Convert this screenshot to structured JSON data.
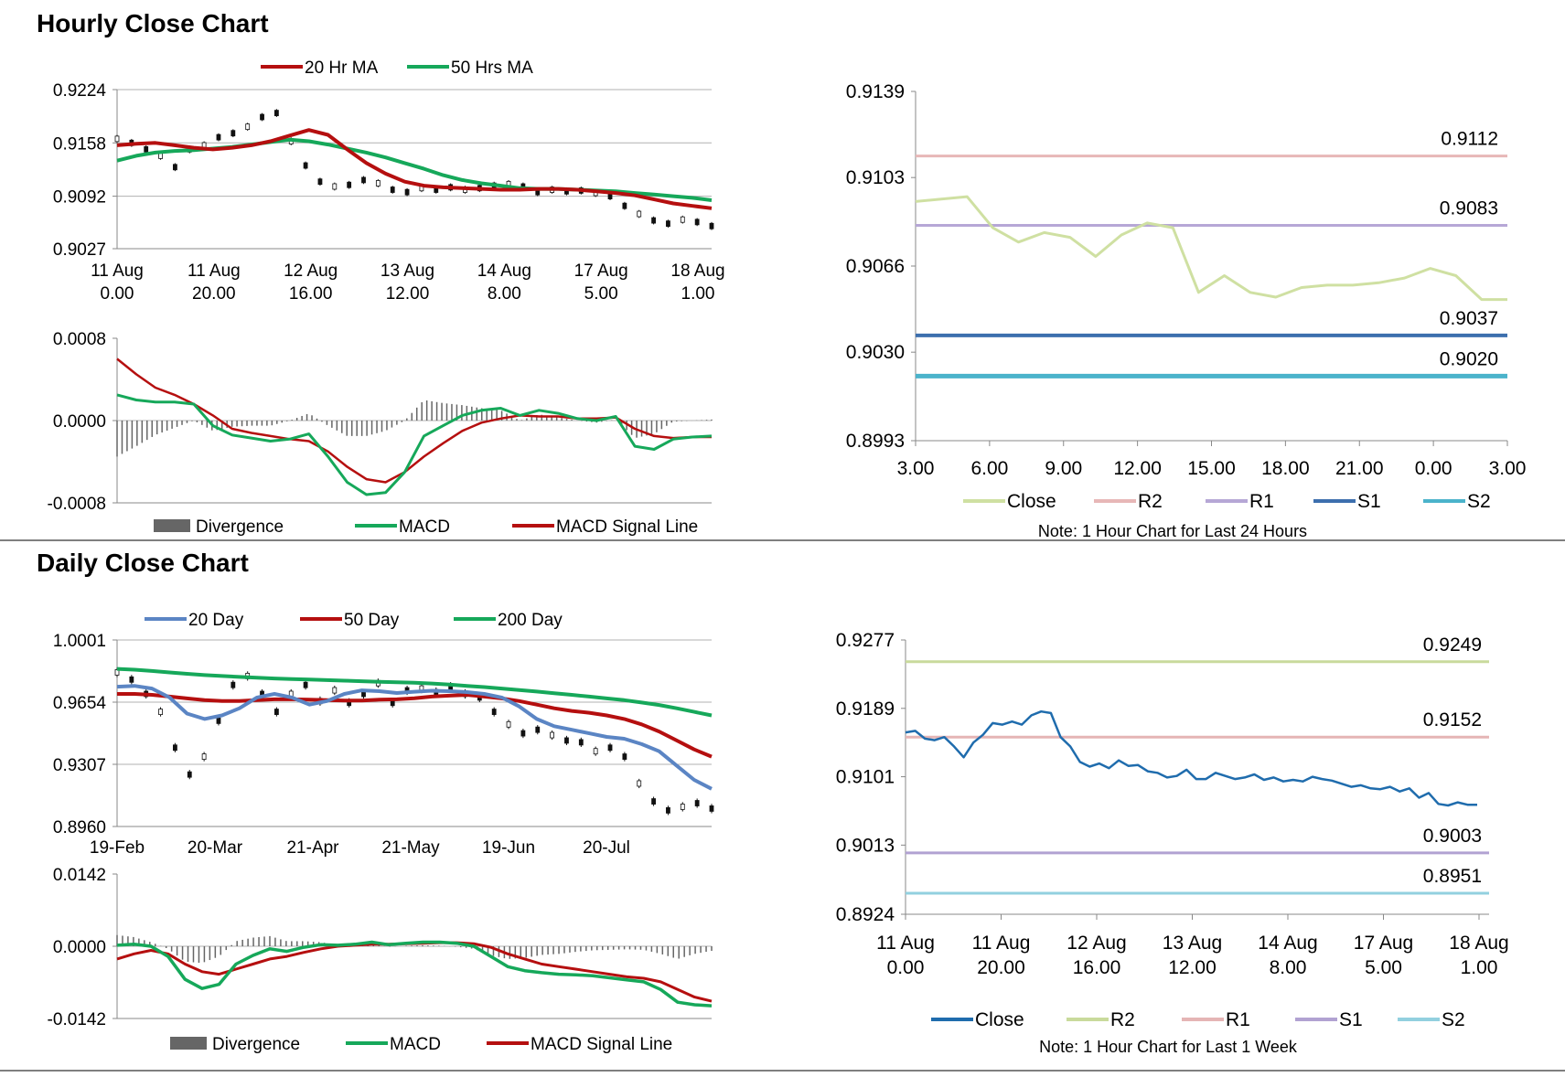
{
  "sections": {
    "hourly_title": "Hourly Close Chart",
    "daily_title": "Daily Close Chart"
  },
  "colors": {
    "red": "#b50f0f",
    "green": "#16a85a",
    "blue": "#5b85c4",
    "close_light": "#cfe0a2",
    "r2_pink": "#e7b7b7",
    "r1_purple": "#b6a7d6",
    "s1_blue": "#3d6fae",
    "s2_teal": "#4bb3cb",
    "daily_blue": "#1f6cad",
    "daily_r2": "#c9da9c",
    "daily_r1": "#e5b5b5",
    "daily_s1": "#b1a2d2",
    "daily_s2": "#92d0df",
    "bar_gray": "#666666"
  },
  "chart_data": [
    {
      "id": "hourly_price",
      "type": "candlestick",
      "legend": [
        "20 Hr MA",
        "50 Hrs MA"
      ],
      "y_ticks": [
        "0.9224",
        "0.9158",
        "0.9092",
        "0.9027"
      ],
      "ylim": [
        0.9027,
        0.9224
      ],
      "x_ticks": [
        [
          "11 Aug",
          "0.00"
        ],
        [
          "11 Aug",
          "20.00"
        ],
        [
          "12 Aug",
          "16.00"
        ],
        [
          "13 Aug",
          "12.00"
        ],
        [
          "14 Aug",
          "8.00"
        ],
        [
          "17 Aug",
          "5.00"
        ],
        [
          "18 Aug",
          "1.00"
        ]
      ],
      "series": [
        {
          "name": "20 Hr MA",
          "values": [
            0.9155,
            0.9157,
            0.9158,
            0.9155,
            0.9152,
            0.915,
            0.9152,
            0.9155,
            0.916,
            0.9167,
            0.9174,
            0.9168,
            0.915,
            0.9133,
            0.912,
            0.911,
            0.9105,
            0.9103,
            0.9102,
            0.9101,
            0.91,
            0.91,
            0.9101,
            0.9101,
            0.91,
            0.9098,
            0.9096,
            0.9093,
            0.9088,
            0.9083,
            0.908,
            0.9077
          ]
        },
        {
          "name": "50 Hrs MA",
          "values": [
            0.9136,
            0.9142,
            0.9146,
            0.9148,
            0.9149,
            0.9151,
            0.9153,
            0.9156,
            0.9159,
            0.9162,
            0.916,
            0.9156,
            0.9151,
            0.9146,
            0.914,
            0.9133,
            0.9126,
            0.9118,
            0.9112,
            0.9108,
            0.9105,
            0.9102,
            0.9101,
            0.9101,
            0.91,
            0.9099,
            0.9098,
            0.9096,
            0.9094,
            0.9092,
            0.909,
            0.9087
          ]
        }
      ],
      "candles": [
        0.9163,
        0.9158,
        0.915,
        0.9142,
        0.9128,
        0.915,
        0.9155,
        0.9165,
        0.917,
        0.9178,
        0.919,
        0.9195,
        0.916,
        0.913,
        0.911,
        0.9104,
        0.9106,
        0.9112,
        0.9108,
        0.91,
        0.9097,
        0.9102,
        0.91,
        0.9103,
        0.91,
        0.9102,
        0.9105,
        0.9107,
        0.9104,
        0.9097,
        0.91,
        0.9098,
        0.9099,
        0.9096,
        0.9092,
        0.908,
        0.907,
        0.9062,
        0.9058,
        0.9063,
        0.906,
        0.9055
      ]
    },
    {
      "id": "hourly_macd",
      "type": "line",
      "legend": [
        "Divergence",
        "MACD",
        "MACD Signal Line"
      ],
      "y_ticks": [
        "0.0008",
        "0.0000",
        "-0.0008"
      ],
      "ylim": [
        -0.0008,
        0.0008
      ],
      "series": [
        {
          "name": "MACD",
          "values": [
            0.00025,
            0.0002,
            0.00018,
            0.00018,
            0.00016,
            -5e-05,
            -0.00014,
            -0.00017,
            -0.0002,
            -0.00018,
            -0.00013,
            -0.00035,
            -0.0006,
            -0.00072,
            -0.0007,
            -0.0005,
            -0.00015,
            -5e-05,
            5e-05,
            0.0001,
            0.00012,
            5e-05,
            0.0001,
            7e-05,
            2e-05,
            0.0,
            4e-05,
            -0.00025,
            -0.00028,
            -0.00018,
            -0.00016,
            -0.00015
          ]
        },
        {
          "name": "MACD Signal Line",
          "values": [
            0.0006,
            0.00045,
            0.00032,
            0.00025,
            0.00016,
            5e-05,
            -8e-05,
            -0.00012,
            -0.00015,
            -0.00018,
            -0.0002,
            -0.0003,
            -0.00045,
            -0.00057,
            -0.0006,
            -0.0005,
            -0.00035,
            -0.00022,
            -0.0001,
            -2e-05,
            2e-05,
            5e-05,
            4e-05,
            4e-05,
            2e-05,
            2e-05,
            3e-05,
            -8e-05,
            -0.00015,
            -0.00017,
            -0.00016,
            -0.00016
          ]
        },
        {
          "name": "Divergence",
          "values": [
            -0.00035,
            -0.00025,
            -0.00014,
            -7e-05,
            0.0,
            -0.0001,
            -6e-05,
            -5e-05,
            -5e-05,
            0.0,
            7e-05,
            -5e-05,
            -0.00015,
            -0.00015,
            -0.0001,
            0.0,
            0.0002,
            0.00017,
            0.00015,
            0.00012,
            0.0001,
            0.0,
            6e-05,
            3e-05,
            0.0,
            -2e-05,
            1e-05,
            -0.00017,
            -0.00013,
            -1e-05,
            0.0,
            1e-05
          ]
        }
      ]
    },
    {
      "id": "hourly_close",
      "type": "line",
      "legend": [
        "Close",
        "R2",
        "R1",
        "S1",
        "S2"
      ],
      "y_ticks": [
        "0.9139",
        "0.9103",
        "0.9066",
        "0.9030",
        "0.8993"
      ],
      "ylim": [
        0.8993,
        0.9139
      ],
      "x_ticks": [
        "3.00",
        "6.00",
        "9.00",
        "12.00",
        "15.00",
        "18.00",
        "21.00",
        "0.00",
        "3.00"
      ],
      "levels": [
        {
          "name": "R2",
          "value": 0.9112,
          "label": "0.9112"
        },
        {
          "name": "R1",
          "value": 0.9083,
          "label": "0.9083"
        },
        {
          "name": "S1",
          "value": 0.9037,
          "label": "0.9037"
        },
        {
          "name": "S2",
          "value": 0.902,
          "label": "0.9020"
        }
      ],
      "series": [
        {
          "name": "Close",
          "values": [
            0.9093,
            0.9094,
            0.9095,
            0.9082,
            0.9076,
            0.908,
            0.9078,
            0.907,
            0.9079,
            0.9084,
            0.9082,
            0.9055,
            0.9062,
            0.9055,
            0.9053,
            0.9057,
            0.9058,
            0.9058,
            0.9059,
            0.9061,
            0.9065,
            0.9062,
            0.9052,
            0.9052
          ]
        }
      ],
      "note": "Note: 1 Hour Chart for Last 24 Hours"
    },
    {
      "id": "daily_price",
      "type": "candlestick",
      "legend": [
        "20 Day",
        "50 Day",
        "200 Day"
      ],
      "y_ticks": [
        "1.0001",
        "0.9654",
        "0.9307",
        "0.8960"
      ],
      "ylim": [
        0.896,
        1.0001
      ],
      "x_ticks": [
        "19-Feb",
        "20-Mar",
        "21-Apr",
        "21-May",
        "19-Jun",
        "20-Jul"
      ],
      "series": [
        {
          "name": "20 Day",
          "values": [
            0.974,
            0.9745,
            0.973,
            0.968,
            0.959,
            0.956,
            0.958,
            0.962,
            0.968,
            0.97,
            0.968,
            0.964,
            0.966,
            0.97,
            0.972,
            0.9715,
            0.9705,
            0.9712,
            0.9718,
            0.9715,
            0.971,
            0.97,
            0.968,
            0.963,
            0.956,
            0.952,
            0.95,
            0.948,
            0.946,
            0.945,
            0.942,
            0.938,
            0.93,
            0.922,
            0.917
          ]
        },
        {
          "name": "50 Day",
          "values": [
            0.97,
            0.97,
            0.9695,
            0.9685,
            0.9675,
            0.9665,
            0.966,
            0.966,
            0.9665,
            0.967,
            0.967,
            0.9668,
            0.9665,
            0.9663,
            0.9663,
            0.9668,
            0.967,
            0.9676,
            0.9685,
            0.969,
            0.9695,
            0.9685,
            0.9675,
            0.966,
            0.964,
            0.962,
            0.9605,
            0.9595,
            0.958,
            0.956,
            0.953,
            0.949,
            0.944,
            0.939,
            0.935
          ]
        },
        {
          "name": "200 Day",
          "values": [
            0.984,
            0.9835,
            0.9828,
            0.982,
            0.9812,
            0.9805,
            0.98,
            0.9795,
            0.979,
            0.9786,
            0.9783,
            0.978,
            0.9777,
            0.9774,
            0.9771,
            0.9768,
            0.9765,
            0.9762,
            0.9758,
            0.9752,
            0.9745,
            0.9738,
            0.973,
            0.9722,
            0.9713,
            0.9704,
            0.9695,
            0.9685,
            0.9675,
            0.9665,
            0.9652,
            0.9638,
            0.962,
            0.96,
            0.958
          ]
        }
      ],
      "candles": [
        0.982,
        0.978,
        0.97,
        0.96,
        0.94,
        0.925,
        0.935,
        0.955,
        0.975,
        0.98,
        0.97,
        0.96,
        0.97,
        0.975,
        0.966,
        0.972,
        0.965,
        0.97,
        0.976,
        0.965,
        0.972,
        0.973,
        0.971,
        0.974,
        0.97,
        0.968,
        0.96,
        0.953,
        0.948,
        0.95,
        0.947,
        0.944,
        0.943,
        0.938,
        0.94,
        0.935,
        0.92,
        0.91,
        0.905,
        0.907,
        0.909,
        0.906
      ]
    },
    {
      "id": "daily_macd",
      "type": "line",
      "legend": [
        "Divergence",
        "MACD",
        "MACD Signal Line"
      ],
      "y_ticks": [
        "0.0142",
        "0.0000",
        "-0.0142"
      ],
      "ylim": [
        -0.0142,
        0.0142
      ],
      "series": [
        {
          "name": "MACD",
          "values": [
            0.0002,
            0.0004,
            0.0,
            -0.002,
            -0.0065,
            -0.0083,
            -0.0075,
            -0.0035,
            -0.0018,
            -0.0005,
            -0.001,
            -0.0002,
            0.0003,
            0.0002,
            0.0004,
            0.0008,
            0.0003,
            0.0006,
            0.0008,
            0.0008,
            0.0006,
            0.0,
            -0.002,
            -0.004,
            -0.0048,
            -0.0052,
            -0.0055,
            -0.0056,
            -0.0058,
            -0.0062,
            -0.0066,
            -0.007,
            -0.0085,
            -0.011,
            -0.0115,
            -0.0117
          ]
        },
        {
          "name": "MACD Signal Line",
          "values": [
            -0.0025,
            -0.0015,
            -0.0008,
            -0.0015,
            -0.0035,
            -0.005,
            -0.0055,
            -0.0045,
            -0.0035,
            -0.0025,
            -0.002,
            -0.0012,
            -0.0005,
            0.0,
            0.0002,
            0.0004,
            0.0004,
            0.0005,
            0.0006,
            0.0007,
            0.0007,
            0.0005,
            -0.0002,
            -0.0015,
            -0.0025,
            -0.0035,
            -0.004,
            -0.0045,
            -0.005,
            -0.0055,
            -0.006,
            -0.0063,
            -0.007,
            -0.0085,
            -0.01,
            -0.0108
          ]
        },
        {
          "name": "Divergence",
          "values": [
            0.0022,
            0.0018,
            0.0008,
            -0.0005,
            -0.003,
            -0.0033,
            -0.002,
            0.001,
            0.0017,
            0.002,
            0.001,
            0.001,
            0.0008,
            0.0002,
            0.0002,
            0.0004,
            -0.0001,
            0.0001,
            0.0002,
            0.0001,
            -0.0001,
            -0.0005,
            -0.0018,
            -0.0025,
            -0.0023,
            -0.0017,
            -0.0015,
            -0.0011,
            -0.0008,
            -0.0007,
            -0.0006,
            -0.0007,
            -0.0015,
            -0.0025,
            -0.0015,
            -0.0009
          ]
        }
      ]
    },
    {
      "id": "daily_close",
      "type": "line",
      "legend": [
        "Close",
        "R2",
        "R1",
        "S1",
        "S2"
      ],
      "y_ticks": [
        "0.9277",
        "0.9189",
        "0.9101",
        "0.9013",
        "0.8924"
      ],
      "ylim": [
        0.8924,
        0.9277
      ],
      "x_ticks": [
        [
          "11 Aug",
          "0.00"
        ],
        [
          "11 Aug",
          "20.00"
        ],
        [
          "12 Aug",
          "16.00"
        ],
        [
          "13 Aug",
          "12.00"
        ],
        [
          "14 Aug",
          "8.00"
        ],
        [
          "17 Aug",
          "5.00"
        ],
        [
          "18 Aug",
          "1.00"
        ]
      ],
      "levels": [
        {
          "name": "R2",
          "value": 0.9249,
          "label": "0.9249"
        },
        {
          "name": "R1",
          "value": 0.9152,
          "label": "0.9152"
        },
        {
          "name": "S1",
          "value": 0.9003,
          "label": "0.9003"
        },
        {
          "name": "S2",
          "value": 0.8951,
          "label": "0.8951"
        }
      ],
      "series": [
        {
          "name": "Close",
          "values": [
            0.9158,
            0.916,
            0.915,
            0.9148,
            0.9152,
            0.914,
            0.9126,
            0.9145,
            0.9155,
            0.917,
            0.9168,
            0.9172,
            0.9168,
            0.918,
            0.9185,
            0.9183,
            0.9152,
            0.914,
            0.912,
            0.9114,
            0.9118,
            0.9112,
            0.9122,
            0.9115,
            0.9116,
            0.9108,
            0.9106,
            0.91,
            0.9102,
            0.911,
            0.9098,
            0.9098,
            0.9106,
            0.9102,
            0.9098,
            0.91,
            0.9104,
            0.9097,
            0.91,
            0.9095,
            0.9097,
            0.9095,
            0.9101,
            0.9098,
            0.9096,
            0.9092,
            0.9088,
            0.909,
            0.9086,
            0.9085,
            0.9088,
            0.9082,
            0.9086,
            0.9074,
            0.908,
            0.9066,
            0.9064,
            0.9068,
            0.9065,
            0.9065
          ]
        }
      ],
      "note": "Note: 1 Hour Chart for Last 1 Week"
    }
  ]
}
